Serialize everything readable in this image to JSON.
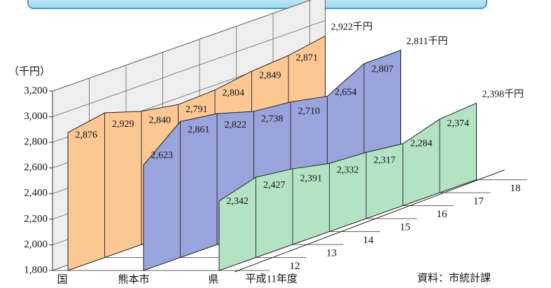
{
  "chart_data": {
    "type": "area",
    "y_label": "（千円）",
    "source": "資料：市統計課",
    "categories": [
      "平成11年度",
      "12",
      "13",
      "14",
      "15",
      "16",
      "17",
      "18"
    ],
    "series": [
      {
        "name": "国",
        "color": "#fbc894",
        "values": [
          2876,
          2929,
          2840,
          2791,
          2804,
          2849,
          2871,
          2922
        ],
        "value_labels": [
          "2,876",
          "2,929",
          "2,840",
          "2,791",
          "2,804",
          "2,849",
          "2,871",
          "2,922千円"
        ]
      },
      {
        "name": "熊本市",
        "color": "#9aa4dc",
        "values": [
          2623,
          2861,
          2822,
          2738,
          2710,
          2654,
          2807,
          2811
        ],
        "value_labels": [
          "2,623",
          "2,861",
          "2,822",
          "2,738",
          "2,710",
          "2,654",
          "2,807",
          "2,811千円"
        ]
      },
      {
        "name": "県",
        "color": "#b4e3c4",
        "values": [
          2342,
          2427,
          2391,
          2332,
          2317,
          2284,
          2374,
          2398
        ],
        "value_labels": [
          "2,342",
          "2,427",
          "2,391",
          "2,332",
          "2,317",
          "2,284",
          "2,374",
          "2,398千円"
        ]
      }
    ],
    "ylim": [
      1800,
      3200
    ],
    "yticks": [
      {
        "value": 1800,
        "label": "1,800"
      },
      {
        "value": 2000,
        "label": "2,000"
      },
      {
        "value": 2200,
        "label": "2,200"
      },
      {
        "value": 2400,
        "label": "2,400"
      },
      {
        "value": 2600,
        "label": "2,600"
      },
      {
        "value": 2800,
        "label": "2,800"
      },
      {
        "value": 3000,
        "label": "3,000"
      },
      {
        "value": 3200,
        "label": "3,200"
      }
    ],
    "grid": true
  }
}
